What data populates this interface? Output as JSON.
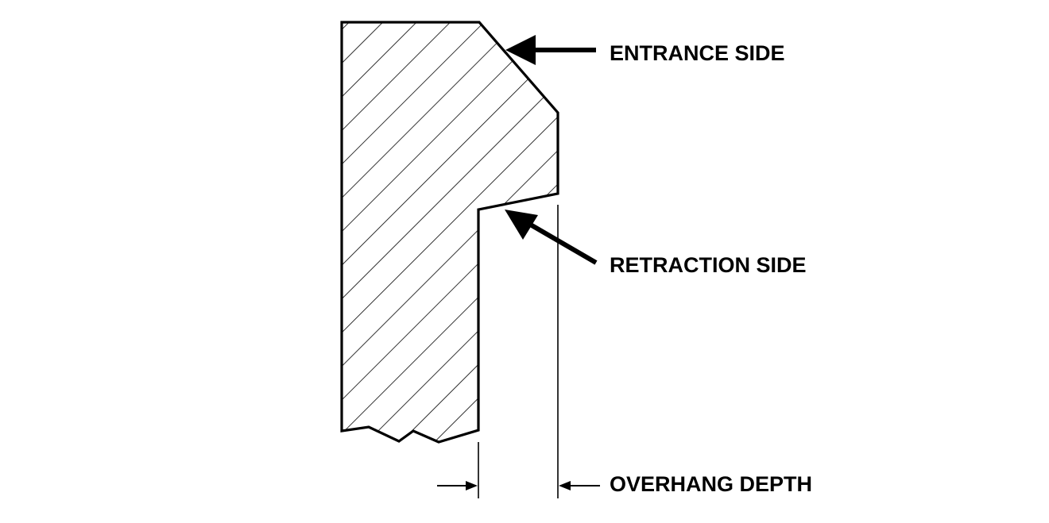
{
  "labels": {
    "entrance_side": "ENTRANCE SIDE",
    "retraction_side": "RETRACTION SIDE",
    "overhang_depth": "OVERHANG DEPTH"
  },
  "colors": {
    "ink": "#000000",
    "background": "#ffffff"
  }
}
